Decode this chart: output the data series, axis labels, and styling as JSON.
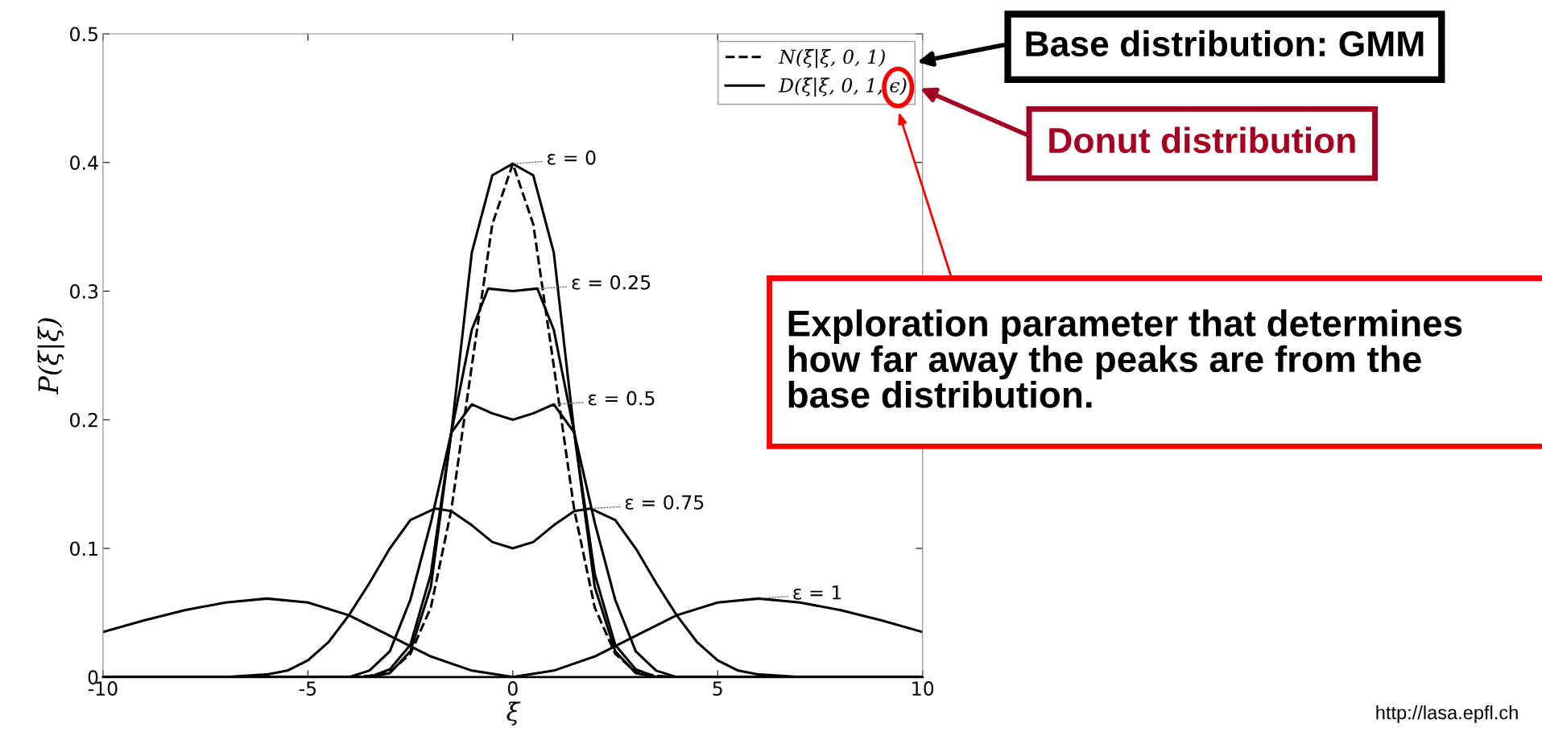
{
  "chart_data": {
    "type": "line",
    "xlabel": "ξ̇",
    "ylabel": "P(ξ̇|ξ)",
    "xlim": [
      -10,
      10
    ],
    "ylim": [
      0,
      0.5
    ],
    "xticks": [
      -10,
      -5,
      0,
      5,
      10
    ],
    "yticks": [
      0,
      0.1,
      0.2,
      0.3,
      0.4,
      0.5
    ],
    "grid": false,
    "legend": "top right",
    "marker": "none",
    "series": [
      {
        "name": "N(ξ̇|ξ, 0, 1)",
        "color": "#000000",
        "line_style": "dashed",
        "x": [
          -10,
          -4,
          -3.5,
          -3,
          -2.5,
          -2,
          -1.5,
          -1,
          -0.5,
          0,
          0.5,
          1,
          1.5,
          2,
          2.5,
          3,
          3.5,
          4,
          10
        ],
        "values": [
          0,
          0,
          0.001,
          0.004,
          0.018,
          0.054,
          0.13,
          0.242,
          0.352,
          0.399,
          0.352,
          0.242,
          0.13,
          0.054,
          0.018,
          0.004,
          0.001,
          0,
          0
        ]
      },
      {
        "name": "D(ξ̇|ξ, 0, 1, ϵ)",
        "color": "#000000",
        "line_style": "solid",
        "x": [
          -10,
          -3.5,
          -3,
          -2.5,
          -2,
          -1.5,
          -1,
          -0.5,
          0,
          0.5,
          1,
          1.5,
          2,
          2.5,
          3,
          3.5,
          10
        ],
        "values": [
          0,
          0,
          0.003,
          0.02,
          0.07,
          0.19,
          0.33,
          0.39,
          0.399,
          0.39,
          0.33,
          0.19,
          0.07,
          0.02,
          0.003,
          0,
          0
        ]
      },
      {
        "color": "#000000",
        "line_style": "solid",
        "x": [
          -10,
          -3.5,
          -3,
          -2.5,
          -2,
          -1.5,
          -1,
          -0.6,
          0,
          0.6,
          1,
          1.5,
          2,
          2.5,
          3,
          3.5,
          10
        ],
        "values": [
          0,
          0,
          0.006,
          0.025,
          0.08,
          0.19,
          0.27,
          0.302,
          0.3,
          0.302,
          0.27,
          0.19,
          0.08,
          0.025,
          0.006,
          0,
          0
        ]
      },
      {
        "color": "#000000",
        "line_style": "solid",
        "x": [
          -10,
          -4,
          -3.5,
          -3,
          -2.5,
          -2,
          -1.5,
          -1,
          -0.5,
          0,
          0.5,
          1,
          1.5,
          2,
          2.5,
          3,
          3.5,
          4,
          10
        ],
        "values": [
          0,
          0,
          0.005,
          0.02,
          0.06,
          0.12,
          0.19,
          0.212,
          0.205,
          0.2,
          0.205,
          0.212,
          0.19,
          0.12,
          0.06,
          0.02,
          0.005,
          0,
          0
        ]
      },
      {
        "color": "#000000",
        "line_style": "solid",
        "x": [
          -10,
          -7,
          -6,
          -5.5,
          -5,
          -4.5,
          -4,
          -3.5,
          -3,
          -2.5,
          -1.9,
          -1.5,
          -1,
          -0.5,
          0,
          0.5,
          1,
          1.5,
          1.9,
          2.5,
          3,
          3.5,
          4,
          4.5,
          5,
          5.5,
          6,
          7,
          10
        ],
        "values": [
          0,
          0,
          0.002,
          0.005,
          0.013,
          0.027,
          0.048,
          0.073,
          0.1,
          0.122,
          0.131,
          0.129,
          0.118,
          0.105,
          0.1,
          0.105,
          0.118,
          0.129,
          0.131,
          0.122,
          0.1,
          0.073,
          0.048,
          0.027,
          0.013,
          0.005,
          0.002,
          0,
          0
        ]
      },
      {
        "color": "#000000",
        "line_style": "solid",
        "x": [
          -10,
          -9,
          -8,
          -7,
          -6,
          -5,
          -4,
          -3,
          -2,
          -1,
          0,
          1,
          2,
          3,
          4,
          5,
          6,
          7,
          8,
          9,
          10
        ],
        "values": [
          0.035,
          0.044,
          0.052,
          0.058,
          0.061,
          0.058,
          0.048,
          0.032,
          0.016,
          0.005,
          0,
          0.005,
          0.016,
          0.032,
          0.048,
          0.058,
          0.061,
          0.058,
          0.052,
          0.044,
          0.035
        ]
      }
    ],
    "annotations": [
      {
        "text": "ε = 0",
        "x": 0,
        "y": 0.399
      },
      {
        "text": "ε = 0.25",
        "x": 0.6,
        "y": 0.302
      },
      {
        "text": "ε = 0.5",
        "x": 1,
        "y": 0.212
      },
      {
        "text": "ε = 0.75",
        "x": 1.9,
        "y": 0.131
      },
      {
        "text": "ε = 1",
        "x": 6.0,
        "y": 0.061
      },
      "Base distribution: GMM",
      "Donut distribution",
      "Exploration parameter that determines\nhow far away the peaks are from the\nbase distribution.",
      "http://lasa.epfl.ch"
    ]
  }
}
